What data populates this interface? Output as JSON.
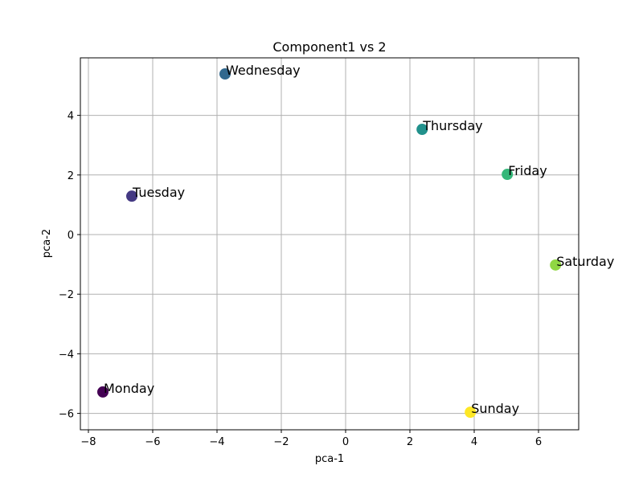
{
  "chart_data": {
    "type": "scatter",
    "title": "Component1 vs 2",
    "xlabel": "pca-1",
    "ylabel": "pca-2",
    "xlim": [
      -8.2,
      7.25
    ],
    "ylim": [
      -6.5,
      5.85
    ],
    "grid": true,
    "legend": null,
    "xticks": [
      -8,
      -6,
      -4,
      -2,
      0,
      2,
      4,
      6
    ],
    "yticks": [
      -6,
      -4,
      -2,
      0,
      2,
      4
    ],
    "xtick_labels": [
      "−8",
      "−6",
      "−4",
      "−2",
      "0",
      "2",
      "4",
      "6"
    ],
    "ytick_labels": [
      "−6",
      "−4",
      "−2",
      "0",
      "2",
      "4"
    ],
    "points": [
      {
        "label": "Monday",
        "x": -7.55,
        "y": -5.28,
        "color": "#440154"
      },
      {
        "label": "Tuesday",
        "x": -6.65,
        "y": 1.29,
        "color": "#443983"
      },
      {
        "label": "Wednesday",
        "x": -3.75,
        "y": 5.39,
        "color": "#31688e"
      },
      {
        "label": "Thursday",
        "x": 2.38,
        "y": 3.53,
        "color": "#21918c"
      },
      {
        "label": "Friday",
        "x": 5.03,
        "y": 2.02,
        "color": "#35b779"
      },
      {
        "label": "Saturday",
        "x": 6.53,
        "y": -1.02,
        "color": "#90d743"
      },
      {
        "label": "Sunday",
        "x": 3.88,
        "y": -5.96,
        "color": "#fde725"
      }
    ]
  }
}
